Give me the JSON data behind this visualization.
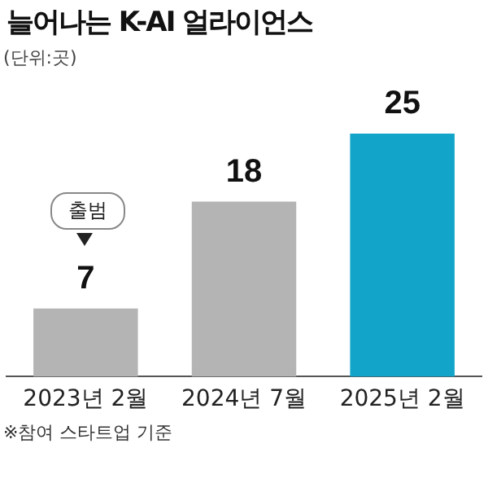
{
  "chart_data": {
    "type": "bar",
    "title": "늘어나는 K-AI 얼라이언스",
    "subtitle": "(단위:곳)",
    "categories": [
      "2023년 2월",
      "2024년 7월",
      "2025년 2월"
    ],
    "values": [
      7,
      18,
      25
    ],
    "colors": [
      "#b4b4b4",
      "#b4b4b4",
      "#13a5c9"
    ],
    "tick_labels": "x",
    "grid": false,
    "legend": false,
    "data_labels": true,
    "annotations": [
      "출범",
      "※참여 스타트업 기준"
    ]
  }
}
